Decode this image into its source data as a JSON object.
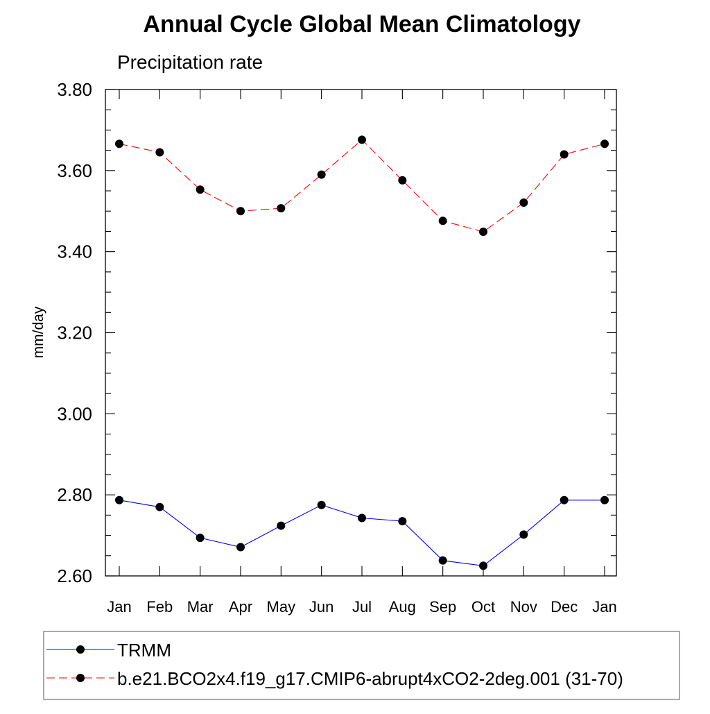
{
  "chart_data": {
    "type": "line",
    "title": "Annual Cycle Global Mean Climatology",
    "subtitle": "Precipitation rate",
    "xlabel": "",
    "ylabel": "mm/day",
    "categories": [
      "Jan",
      "Feb",
      "Mar",
      "Apr",
      "May",
      "Jun",
      "Jul",
      "Aug",
      "Sep",
      "Oct",
      "Nov",
      "Dec",
      "Jan"
    ],
    "ylim": [
      2.6,
      3.8
    ],
    "yticks": [
      "2.60",
      "2.80",
      "3.00",
      "3.20",
      "3.40",
      "3.60",
      "3.80"
    ],
    "grid": false,
    "legend_position": "bottom",
    "series": [
      {
        "name": "TRMM",
        "color": "#0000ff",
        "line_style": "solid",
        "marker": "filled-circle",
        "values": [
          2.787,
          2.77,
          2.694,
          2.671,
          2.724,
          2.775,
          2.743,
          2.735,
          2.638,
          2.625,
          2.702,
          2.787,
          2.787
        ]
      },
      {
        "name": "b.e21.BCO2x4.f19_g17.CMIP6-abrupt4xCO2-2deg.001 (31-70)",
        "color": "#ff0000",
        "line_style": "dashed",
        "marker": "filled-circle",
        "values": [
          3.666,
          3.645,
          3.553,
          3.5,
          3.507,
          3.59,
          3.676,
          3.576,
          3.476,
          3.449,
          3.521,
          3.64,
          3.666
        ]
      }
    ]
  }
}
